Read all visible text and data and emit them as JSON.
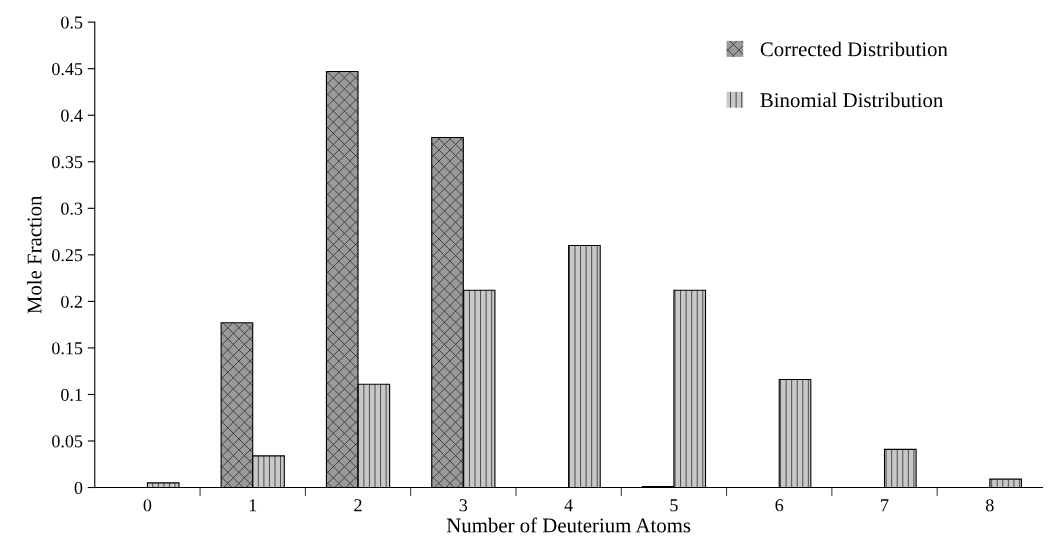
{
  "chart_data": {
    "type": "bar",
    "xlabel": "Number of Deuterium Atoms",
    "ylabel": "Mole Fraction",
    "categories": [
      "0",
      "1",
      "2",
      "3",
      "4",
      "5",
      "6",
      "7",
      "8"
    ],
    "series": [
      {
        "name": "Corrected Distribution",
        "color": "#9a9a9a",
        "values": [
          0,
          0.177,
          0.447,
          0.376,
          0,
          0.001,
          0,
          0,
          0
        ]
      },
      {
        "name": "Binomial Distribution",
        "color": "#c8c8c8",
        "values": [
          0.005,
          0.034,
          0.111,
          0.212,
          0.26,
          0.212,
          0.116,
          0.041,
          0.009
        ]
      }
    ],
    "ylim": [
      0,
      0.5
    ],
    "yticks": [
      0,
      0.05,
      0.1,
      0.15,
      0.2,
      0.25,
      0.3,
      0.35,
      0.4,
      0.45,
      0.5
    ],
    "grid": false,
    "legend": "top right"
  }
}
